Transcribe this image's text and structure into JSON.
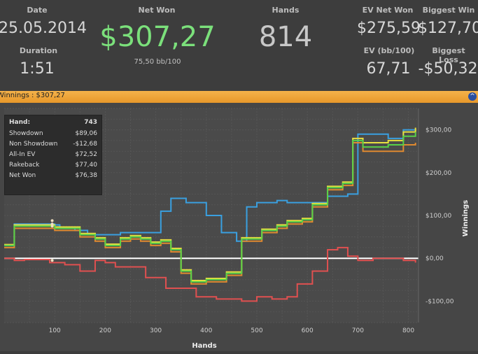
{
  "stats": {
    "date_label": "Date",
    "date_value": "25.05.2014",
    "duration_label": "Duration",
    "duration_value": "1:51",
    "netwon_label": "Net Won",
    "netwon_value": "$307,27",
    "netwon_sub": "75,50 bb/100",
    "hands_label": "Hands",
    "hands_value": "814",
    "evnet_label": "EV Net Won",
    "evnet_value": "$275,59",
    "evbb_label": "EV (bb/100)",
    "evbb_value": "67,71",
    "bigwin_label": "Biggest Win",
    "bigwin_value": "$127,70",
    "bigloss_label": "Biggest Loss",
    "bigloss_value": "-$50,32",
    "netwon_color": "#7be07b"
  },
  "bar": {
    "title": "Winnings : $307,27",
    "button": "^"
  },
  "tooltip": {
    "hand_label": "Hand:",
    "hand_value": "743",
    "rows": [
      {
        "k": "Showdown",
        "v": "$89,06"
      },
      {
        "k": "Non Showdown",
        "v": "-$12,68"
      },
      {
        "k": "All-In EV",
        "v": "$72,52"
      },
      {
        "k": "Rakeback",
        "v": "$77,40"
      },
      {
        "k": "Net Won",
        "v": "$76,38"
      }
    ]
  },
  "chart_data": {
    "type": "line",
    "xlabel": "Hands",
    "ylabel": "Winnings",
    "xlim": [
      0,
      820
    ],
    "ylim": [
      -150,
      350
    ],
    "x_ticks": [
      100,
      200,
      300,
      400,
      500,
      600,
      700,
      800
    ],
    "y_ticks": [
      {
        "v": 300,
        "label": "$300,00"
      },
      {
        "v": 200,
        "label": "$200,00"
      },
      {
        "v": 100,
        "label": "$100,00"
      },
      {
        "v": 0,
        "label": "$0,00"
      },
      {
        "v": -100,
        "label": "-$100,00"
      }
    ],
    "series": [
      {
        "color": "#3aa0e0",
        "points": [
          [
            0,
            30
          ],
          [
            20,
            80
          ],
          [
            100,
            78
          ],
          [
            110,
            70
          ],
          [
            140,
            65
          ],
          [
            165,
            55
          ],
          [
            200,
            55
          ],
          [
            230,
            60
          ],
          [
            250,
            60
          ],
          [
            310,
            110
          ],
          [
            320,
            110
          ],
          [
            330,
            140
          ],
          [
            335,
            140
          ],
          [
            360,
            130
          ],
          [
            380,
            130
          ],
          [
            400,
            100
          ],
          [
            430,
            60
          ],
          [
            450,
            60
          ],
          [
            460,
            40
          ],
          [
            470,
            40
          ],
          [
            480,
            120
          ],
          [
            500,
            130
          ],
          [
            540,
            135
          ],
          [
            560,
            130
          ],
          [
            600,
            130
          ],
          [
            640,
            145
          ],
          [
            680,
            150
          ],
          [
            700,
            290
          ],
          [
            760,
            280
          ],
          [
            790,
            300
          ],
          [
            814,
            300
          ]
        ]
      },
      {
        "color": "#e05050",
        "points": [
          [
            0,
            0
          ],
          [
            20,
            -5
          ],
          [
            40,
            -3
          ],
          [
            90,
            -10
          ],
          [
            120,
            -15
          ],
          [
            150,
            -30
          ],
          [
            180,
            -5
          ],
          [
            200,
            -10
          ],
          [
            220,
            -20
          ],
          [
            250,
            -20
          ],
          [
            280,
            -45
          ],
          [
            320,
            -70
          ],
          [
            380,
            -90
          ],
          [
            420,
            -95
          ],
          [
            470,
            -100
          ],
          [
            500,
            -90
          ],
          [
            530,
            -95
          ],
          [
            560,
            -90
          ],
          [
            580,
            -60
          ],
          [
            600,
            -60
          ],
          [
            610,
            -30
          ],
          [
            640,
            20
          ],
          [
            660,
            25
          ],
          [
            680,
            5
          ],
          [
            700,
            -5
          ],
          [
            730,
            0
          ],
          [
            760,
            0
          ],
          [
            790,
            -5
          ],
          [
            814,
            -10
          ]
        ]
      },
      {
        "color": "#e08a30",
        "points": [
          [
            0,
            25
          ],
          [
            20,
            70
          ],
          [
            100,
            65
          ],
          [
            150,
            50
          ],
          [
            180,
            40
          ],
          [
            200,
            25
          ],
          [
            230,
            40
          ],
          [
            250,
            45
          ],
          [
            270,
            40
          ],
          [
            290,
            30
          ],
          [
            310,
            35
          ],
          [
            330,
            15
          ],
          [
            350,
            -35
          ],
          [
            370,
            -60
          ],
          [
            400,
            -55
          ],
          [
            440,
            -40
          ],
          [
            470,
            40
          ],
          [
            510,
            60
          ],
          [
            540,
            70
          ],
          [
            560,
            80
          ],
          [
            590,
            85
          ],
          [
            610,
            120
          ],
          [
            640,
            160
          ],
          [
            670,
            170
          ],
          [
            690,
            270
          ],
          [
            710,
            250
          ],
          [
            760,
            250
          ],
          [
            790,
            265
          ],
          [
            814,
            270
          ]
        ]
      },
      {
        "color": "#e8e040",
        "points": [
          [
            0,
            32
          ],
          [
            20,
            78
          ],
          [
            100,
            73
          ],
          [
            150,
            58
          ],
          [
            180,
            48
          ],
          [
            200,
            33
          ],
          [
            230,
            48
          ],
          [
            250,
            53
          ],
          [
            270,
            48
          ],
          [
            290,
            38
          ],
          [
            310,
            43
          ],
          [
            330,
            23
          ],
          [
            350,
            -27
          ],
          [
            370,
            -52
          ],
          [
            400,
            -47
          ],
          [
            440,
            -32
          ],
          [
            470,
            48
          ],
          [
            510,
            68
          ],
          [
            540,
            78
          ],
          [
            560,
            88
          ],
          [
            590,
            93
          ],
          [
            610,
            128
          ],
          [
            640,
            168
          ],
          [
            670,
            178
          ],
          [
            690,
            280
          ],
          [
            710,
            270
          ],
          [
            760,
            275
          ],
          [
            790,
            295
          ],
          [
            814,
            305
          ]
        ]
      },
      {
        "color": "#58d048",
        "points": [
          [
            0,
            30
          ],
          [
            20,
            75
          ],
          [
            100,
            70
          ],
          [
            150,
            55
          ],
          [
            180,
            45
          ],
          [
            200,
            30
          ],
          [
            230,
            45
          ],
          [
            250,
            50
          ],
          [
            270,
            45
          ],
          [
            290,
            35
          ],
          [
            310,
            40
          ],
          [
            330,
            20
          ],
          [
            350,
            -30
          ],
          [
            370,
            -55
          ],
          [
            400,
            -50
          ],
          [
            440,
            -35
          ],
          [
            470,
            45
          ],
          [
            510,
            65
          ],
          [
            540,
            75
          ],
          [
            560,
            85
          ],
          [
            590,
            90
          ],
          [
            610,
            125
          ],
          [
            640,
            165
          ],
          [
            670,
            175
          ],
          [
            690,
            275
          ],
          [
            710,
            260
          ],
          [
            760,
            265
          ],
          [
            790,
            285
          ],
          [
            814,
            295
          ]
        ]
      }
    ]
  }
}
